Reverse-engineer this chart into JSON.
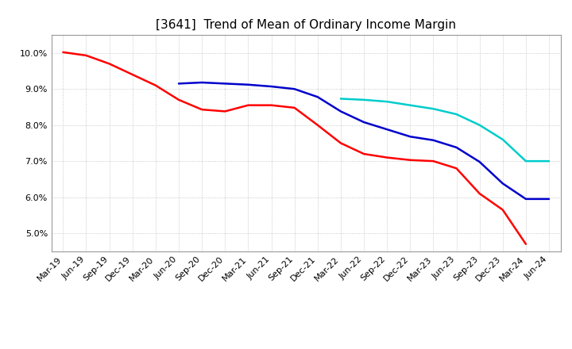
{
  "title": "[3641]  Trend of Mean of Ordinary Income Margin",
  "ylim": [
    0.045,
    0.105
  ],
  "yticks": [
    0.05,
    0.06,
    0.07,
    0.08,
    0.09,
    0.1
  ],
  "yticklabels": [
    "5.0%",
    "6.0%",
    "7.0%",
    "8.0%",
    "9.0%",
    "10.0%"
  ],
  "background_color": "#ffffff",
  "plot_bg_color": "#ffffff",
  "grid_color": "#bbbbbb",
  "title_fontsize": 11,
  "tick_fontsize": 8,
  "legend_fontsize": 9,
  "linewidth": 1.8,
  "series": {
    "3 Years": {
      "color": "#ff0000",
      "values": [
        0.1002,
        0.0993,
        0.097,
        0.094,
        0.091,
        0.087,
        0.0843,
        0.0838,
        0.0855,
        0.0855,
        0.0848,
        0.08,
        0.075,
        0.072,
        0.071,
        0.0703,
        0.07,
        0.068,
        0.061,
        0.0565,
        0.047,
        null
      ]
    },
    "5 Years": {
      "color": "#0000cc",
      "values": [
        null,
        null,
        null,
        null,
        null,
        0.0915,
        0.0918,
        0.0915,
        0.0912,
        0.0907,
        0.09,
        0.0878,
        0.0838,
        0.0808,
        0.0788,
        0.0768,
        0.0758,
        0.0738,
        0.0698,
        0.0638,
        0.0595,
        0.0595
      ]
    },
    "7 Years": {
      "color": "#00cccc",
      "values": [
        null,
        null,
        null,
        null,
        null,
        null,
        null,
        null,
        null,
        null,
        null,
        null,
        0.0873,
        0.087,
        0.0865,
        0.0855,
        0.0845,
        0.083,
        0.08,
        0.076,
        0.07,
        0.07
      ]
    },
    "10 Years": {
      "color": "#006400",
      "values": [
        null,
        null,
        null,
        null,
        null,
        null,
        null,
        null,
        null,
        null,
        null,
        null,
        null,
        null,
        null,
        null,
        null,
        null,
        null,
        null,
        null,
        null
      ]
    }
  },
  "xtick_labels": [
    "Mar-19",
    "Jun-19",
    "Sep-19",
    "Dec-19",
    "Mar-20",
    "Jun-20",
    "Sep-20",
    "Dec-20",
    "Mar-21",
    "Jun-21",
    "Sep-21",
    "Dec-21",
    "Mar-22",
    "Jun-22",
    "Sep-22",
    "Dec-22",
    "Mar-23",
    "Jun-23",
    "Sep-23",
    "Dec-23",
    "Mar-24",
    "Jun-24"
  ]
}
